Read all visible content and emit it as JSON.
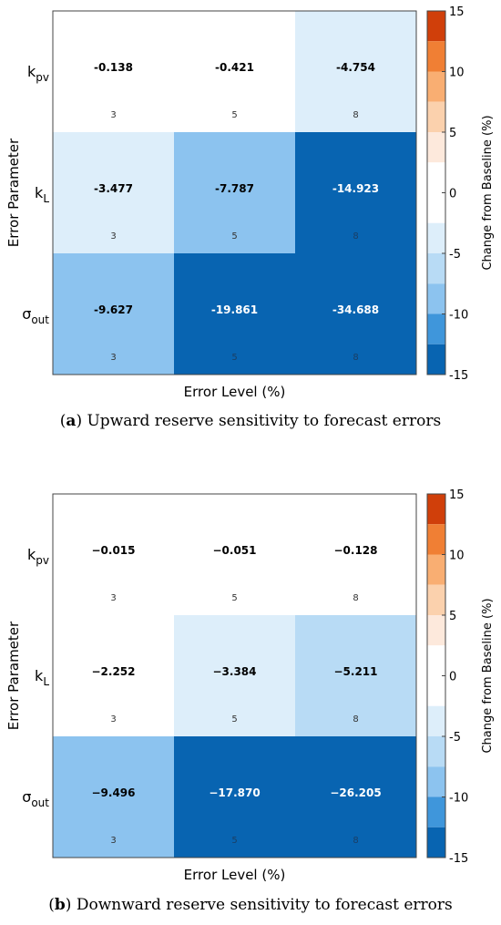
{
  "chart_data": [
    {
      "type": "heatmap",
      "caption_label": "a",
      "caption_text": "Upward reserve sensitivity to forecast errors",
      "xlabel": "Error Level (%)",
      "ylabel": "Error Parameter",
      "rows": [
        {
          "label": "k",
          "sub": "pv"
        },
        {
          "label": "k",
          "sub": "L"
        },
        {
          "label": "σ",
          "sub": "out"
        }
      ],
      "values": [
        [
          -0.138,
          -0.421,
          -4.754
        ],
        [
          -3.477,
          -7.787,
          -14.923
        ],
        [
          -9.627,
          -19.861,
          -34.688
        ]
      ],
      "value_labels": [
        [
          "-0.138",
          "-0.421",
          "-4.754"
        ],
        [
          "-3.477",
          "-7.787",
          "-14.923"
        ],
        [
          "-9.627",
          "-19.861",
          "-34.688"
        ]
      ],
      "level_labels": [
        [
          "3",
          "5",
          "8"
        ],
        [
          "3",
          "5",
          "8"
        ],
        [
          "3",
          "5",
          "8"
        ]
      ],
      "colorbar": {
        "label": "Change from Baseline (%)",
        "range": [
          -15,
          15
        ],
        "ticks": [
          "15",
          "10",
          "5",
          "0",
          "-5",
          "-10",
          "-15"
        ],
        "tick_values": [
          15,
          10,
          5,
          0,
          -5,
          -10,
          -15
        ],
        "bins": [
          {
            "from": 12.5,
            "to": 15,
            "color": "#d03f0a"
          },
          {
            "from": 10,
            "to": 12.5,
            "color": "#f07f34"
          },
          {
            "from": 7.5,
            "to": 10,
            "color": "#f9ae72"
          },
          {
            "from": 5,
            "to": 7.5,
            "color": "#fbd1ad"
          },
          {
            "from": 2.5,
            "to": 5,
            "color": "#fde9dc"
          },
          {
            "from": -2.5,
            "to": 2.5,
            "color": "#ffffff"
          },
          {
            "from": -5,
            "to": -2.5,
            "color": "#ddeefa"
          },
          {
            "from": -7.5,
            "to": -5,
            "color": "#b8dbf5"
          },
          {
            "from": -10,
            "to": -7.5,
            "color": "#8cc3ef"
          },
          {
            "from": -12.5,
            "to": -10,
            "color": "#3f96db"
          },
          {
            "from": -15,
            "to": -12.5,
            "color": "#0864b1"
          }
        ]
      }
    },
    {
      "type": "heatmap",
      "caption_label": "b",
      "caption_text": "Downward reserve sensitivity to forecast errors",
      "xlabel": "Error Level (%)",
      "ylabel": "Error Parameter",
      "rows": [
        {
          "label": "k",
          "sub": "pv"
        },
        {
          "label": "k",
          "sub": "L"
        },
        {
          "label": "σ",
          "sub": "out"
        }
      ],
      "values": [
        [
          -0.015,
          -0.051,
          -0.128
        ],
        [
          -2.252,
          -3.384,
          -5.211
        ],
        [
          -9.496,
          -17.87,
          -26.205
        ]
      ],
      "value_labels": [
        [
          "−0.015",
          "−0.051",
          "−0.128"
        ],
        [
          "−2.252",
          "−3.384",
          "−5.211"
        ],
        [
          "−9.496",
          "−17.870",
          "−26.205"
        ]
      ],
      "level_labels": [
        [
          "3",
          "5",
          "8"
        ],
        [
          "3",
          "5",
          "8"
        ],
        [
          "3",
          "5",
          "8"
        ]
      ],
      "colorbar": {
        "label": "Change from Baseline (%)",
        "range": [
          -15,
          15
        ],
        "ticks": [
          "15",
          "10",
          "5",
          "0",
          "-5",
          "-10",
          "-15"
        ],
        "tick_values": [
          15,
          10,
          5,
          0,
          -5,
          -10,
          -15
        ],
        "bins": [
          {
            "from": 12.5,
            "to": 15,
            "color": "#d03f0a"
          },
          {
            "from": 10,
            "to": 12.5,
            "color": "#f07f34"
          },
          {
            "from": 7.5,
            "to": 10,
            "color": "#f9ae72"
          },
          {
            "from": 5,
            "to": 7.5,
            "color": "#fbd1ad"
          },
          {
            "from": 2.5,
            "to": 5,
            "color": "#fde9dc"
          },
          {
            "from": -2.5,
            "to": 2.5,
            "color": "#ffffff"
          },
          {
            "from": -5,
            "to": -2.5,
            "color": "#ddeefa"
          },
          {
            "from": -7.5,
            "to": -5,
            "color": "#b8dbf5"
          },
          {
            "from": -10,
            "to": -7.5,
            "color": "#8cc3ef"
          },
          {
            "from": -12.5,
            "to": -10,
            "color": "#3f96db"
          },
          {
            "from": -15,
            "to": -12.5,
            "color": "#0864b1"
          }
        ]
      }
    }
  ]
}
